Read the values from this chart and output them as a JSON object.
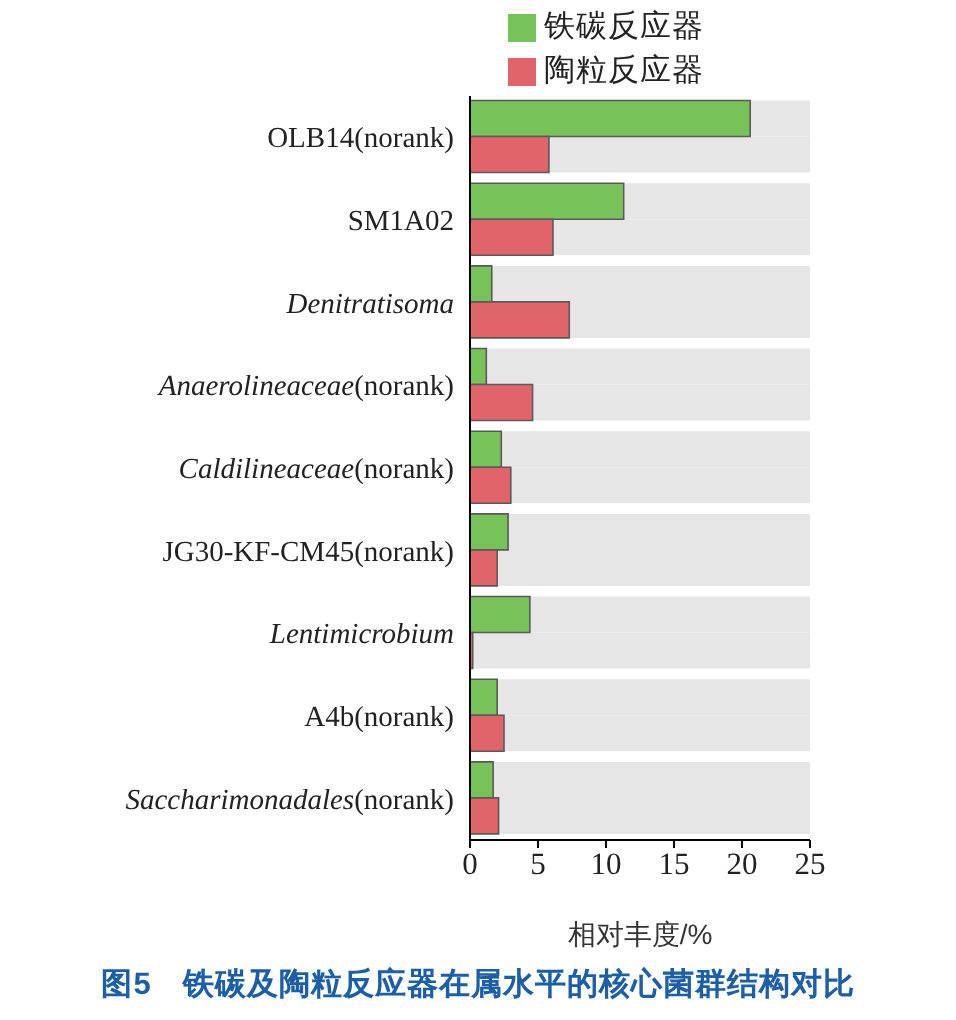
{
  "chart_data": {
    "type": "bar",
    "orientation": "horizontal",
    "title": "图5　铁碳及陶粒反应器在属水平的核心菌群结构对比",
    "xlabel": "相对丰度/%",
    "categories": [
      "OLB14(norank)",
      "SM1A02",
      "Denitratisoma",
      "Anaerolineaceae(norank)",
      "Caldilineaceae(norank)",
      "JG30-KF-CM45(norank)",
      "Lentimicrobium",
      "A4b(norank)",
      "Saccharimonadales(norank)"
    ],
    "series": [
      {
        "name": "铁碳反应器",
        "color": "#78c25a",
        "values": [
          20.6,
          11.3,
          1.6,
          1.2,
          2.3,
          2.8,
          4.4,
          2.0,
          1.7
        ]
      },
      {
        "name": "陶粒反应器",
        "color": "#e0646a",
        "values": [
          5.8,
          6.1,
          7.3,
          4.6,
          3.0,
          2.0,
          0.2,
          2.5,
          2.1
        ]
      }
    ],
    "xlim": [
      0,
      25
    ],
    "xticks": [
      0,
      5,
      10,
      15,
      20,
      25
    ],
    "legend": "top"
  }
}
